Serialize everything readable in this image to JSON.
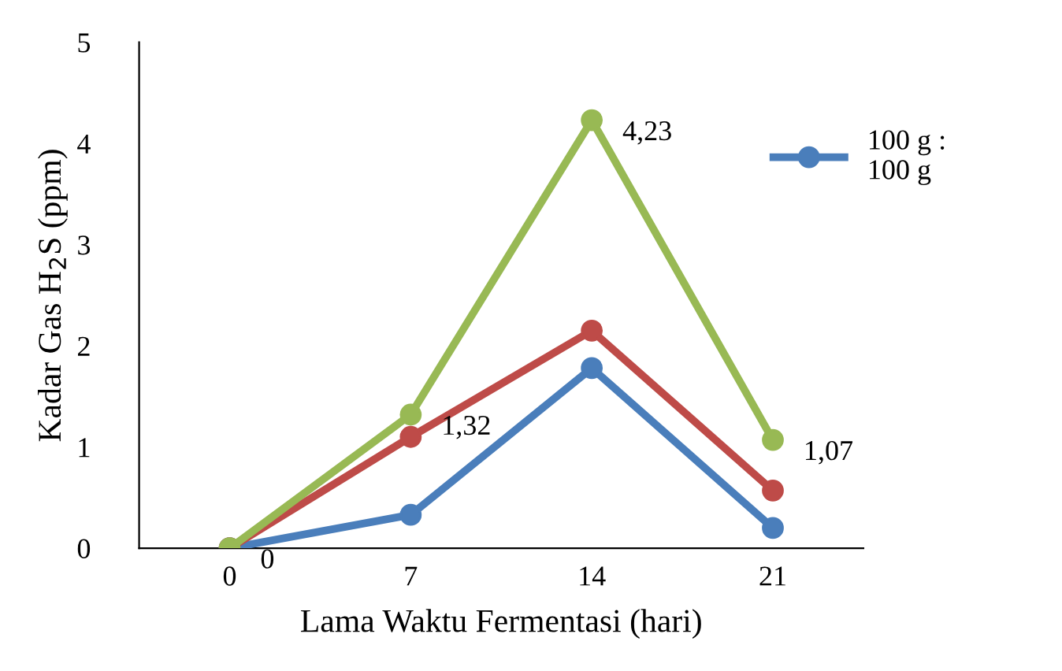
{
  "chart_data": {
    "type": "line",
    "xlabel": "Lama Waktu Fermentasi (hari)",
    "ylabel": "Kadar Gas H$_{2}$S (ppm)",
    "categories": [
      "0",
      "7",
      "14",
      "21"
    ],
    "series": [
      {
        "name": "100 g :\n100 g",
        "color": "#4a7ebb",
        "values": [
          0,
          0.33,
          1.78,
          0.2
        ]
      },
      {
        "color": "#be4b48",
        "values": [
          0,
          1.1,
          2.15,
          0.57
        ]
      },
      {
        "color": "#98b954",
        "values": [
          0,
          1.32,
          4.23,
          1.07
        ],
        "value_labels": [
          "0",
          "1,32",
          "4,23",
          "1,07"
        ]
      }
    ],
    "ylim": [
      0,
      5
    ],
    "yticks": [
      0,
      1,
      2,
      3,
      4,
      5
    ],
    "grid": false,
    "legend": "top right",
    "marker": "circle",
    "line_style": "solid"
  }
}
